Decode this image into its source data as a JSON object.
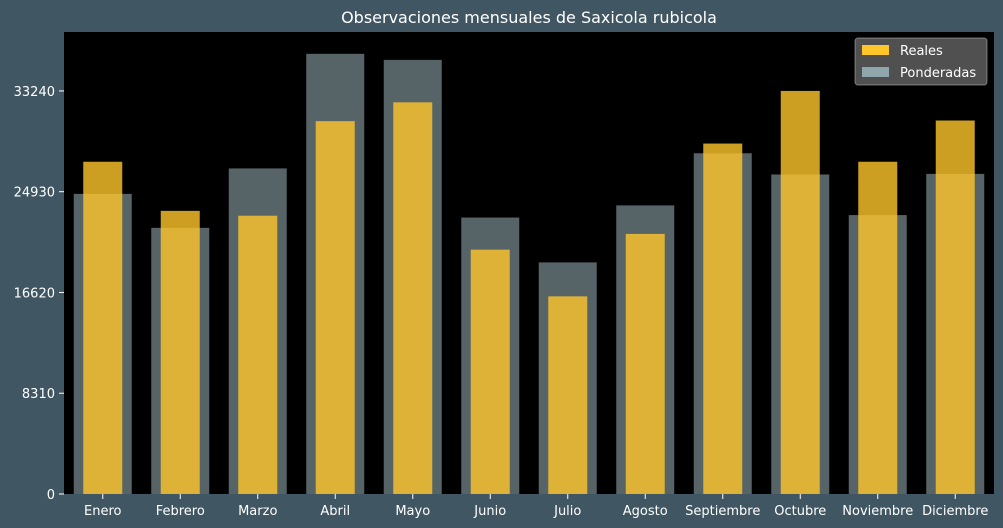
{
  "chart_data": {
    "type": "bar",
    "title": "Observaciones mensuales de Saxicola rubicola",
    "xlabel": "",
    "ylabel": "",
    "categories": [
      "Enero",
      "Febrero",
      "Marzo",
      "Abril",
      "Mayo",
      "Junio",
      "Julio",
      "Agosto",
      "Septiembre",
      "Octubre",
      "Noviembre",
      "Diciembre"
    ],
    "series": [
      {
        "name": "Reales",
        "color": "#ffc629",
        "values": [
          27400,
          23350,
          22950,
          30750,
          32300,
          20150,
          16300,
          21450,
          28900,
          33240,
          27400,
          30800
        ]
      },
      {
        "name": "Ponderadas",
        "color": "#8fa6ad",
        "values": [
          24750,
          21950,
          26850,
          36300,
          35800,
          22800,
          19100,
          23800,
          28100,
          26350,
          23000,
          26400
        ]
      }
    ],
    "yticks": [
      0,
      8310,
      16620,
      24930,
      33240
    ],
    "ylim": [
      0,
      38100
    ],
    "legend_position": "top-right",
    "grid": false,
    "background": "#000000",
    "figure_background": "#405663",
    "text_color": "#ffffff",
    "legend_background": "#595959"
  }
}
